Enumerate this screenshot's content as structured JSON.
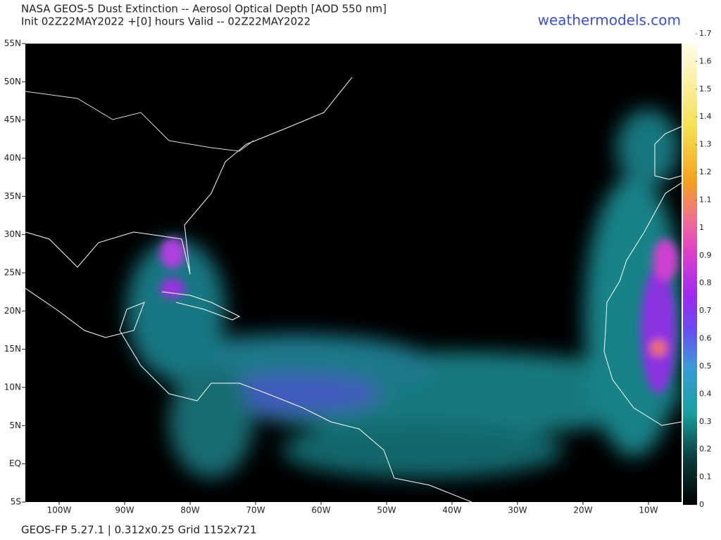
{
  "header": {
    "title": "NASA GEOS-5 Dust Extinction -- Aerosol Optical Depth [AOD 550 nm]",
    "subtitle": "Init 02Z22MAY2022 +[0] hours Valid -- 02Z22MAY2022",
    "site": "weathermodels.com"
  },
  "map": {
    "lat_labels": [
      "55N",
      "50N",
      "45N",
      "40N",
      "35N",
      "30N",
      "25N",
      "20N",
      "15N",
      "10N",
      "5N",
      "EQ",
      "5S"
    ],
    "lon_labels": [
      "100W",
      "90W",
      "80W",
      "70W",
      "60W",
      "50W",
      "40W",
      "30W",
      "20W",
      "10W"
    ]
  },
  "colorbar": {
    "ticks": [
      0,
      0.1,
      0.2,
      0.3,
      0.4,
      0.5,
      0.6,
      0.7,
      0.8,
      0.9,
      1,
      1.1,
      1.2,
      1.3,
      1.4,
      1.5,
      1.6,
      1.7
    ]
  },
  "footer": {
    "text": "GEOS-FP 5.27.1 | 0.312x0.25 Grid 1152x721"
  }
}
